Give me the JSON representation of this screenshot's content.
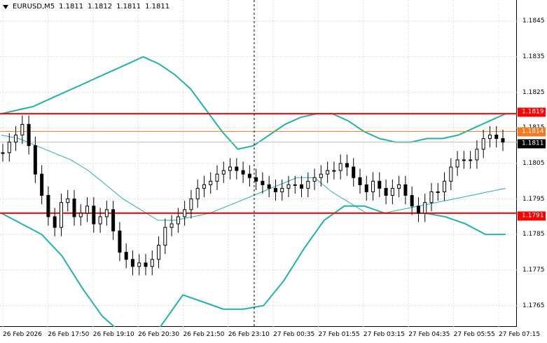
{
  "chart_header": {
    "symbol": "EURUSD,M5",
    "open": "1.1811",
    "high": "1.1812",
    "low": "1.1811",
    "close": "1.1811"
  },
  "colors": {
    "band": "#22b2aa",
    "resistance": "#ff0000",
    "current_price_tag": "#000000",
    "orange_level": "#f37a20",
    "candle": "#000000"
  },
  "levels": {
    "upper_red": "1.1819",
    "orange": "1.1814",
    "current": "1.1811",
    "lower_red": "1.1791"
  },
  "chart_data": {
    "type": "candlestick",
    "title": "",
    "ylim": [
      1.1759,
      1.1851
    ],
    "y_ticks": [
      "1.1845",
      "1.1835",
      "1.1825",
      "1.1815",
      "1.1805",
      "1.1795",
      "1.1785",
      "1.1775",
      "1.1765"
    ],
    "x_ticks": [
      "26 Feb 2026",
      "26 Feb 17:50",
      "26 Feb 19:10",
      "26 Feb 20:30",
      "26 Feb 21:50",
      "26 Feb 23:10",
      "27 Feb 00:35",
      "27 Feb 01:55",
      "27 Feb 03:15",
      "27 Feb 04:35",
      "27 Feb 05:55",
      "27 Feb 07:15"
    ],
    "horizontal_lines": [
      {
        "value": 1.1819,
        "color": "#ff0000"
      },
      {
        "value": 1.1814,
        "color": "#f37a20"
      },
      {
        "value": 1.1791,
        "color": "#ff0000"
      },
      {
        "value": 1.1811,
        "color": "#c0c0c0"
      }
    ],
    "vertical_marker_label": "26 Feb 23:10",
    "close_series": [
      1.1808,
      1.1811,
      1.1813,
      1.1816,
      1.181,
      1.1802,
      1.1796,
      1.179,
      1.1787,
      1.1794,
      1.1795,
      1.179,
      1.1791,
      1.1793,
      1.1788,
      1.179,
      1.1792,
      1.1786,
      1.178,
      1.1778,
      1.1776,
      1.1777,
      1.1776,
      1.1778,
      1.1782,
      1.1787,
      1.1788,
      1.179,
      1.1792,
      1.1795,
      1.1798,
      1.1799,
      1.18,
      1.1802,
      1.1803,
      1.1804,
      1.1803,
      1.1802,
      1.1801,
      1.18,
      1.1799,
      1.1798,
      1.1797,
      1.1798,
      1.1799,
      1.1799,
      1.1798,
      1.18,
      1.1801,
      1.1802,
      1.1803,
      1.1803,
      1.1805,
      1.1804,
      1.1801,
      1.1799,
      1.1797,
      1.18,
      1.1798,
      1.1796,
      1.1798,
      1.1799,
      1.1796,
      1.1793,
      1.1791,
      1.1794,
      1.1797,
      1.1797,
      1.18,
      1.1804,
      1.1806,
      1.1806,
      1.1806,
      1.1809,
      1.1812,
      1.1813,
      1.1812,
      1.1811
    ],
    "bollinger_upper": [
      1.1819,
      1.182,
      1.1821,
      1.1823,
      1.1825,
      1.1827,
      1.1829,
      1.1831,
      1.1833,
      1.1835,
      1.1833,
      1.183,
      1.1826,
      1.182,
      1.1814,
      1.1809,
      1.181,
      1.1813,
      1.1816,
      1.1818,
      1.1819,
      1.1819,
      1.1817,
      1.1814,
      1.1812,
      1.1811,
      1.1811,
      1.1812,
      1.1812,
      1.1813,
      1.1815,
      1.1817,
      1.1819
    ],
    "bollinger_middle": [
      1.1813,
      1.1812,
      1.181,
      1.1808,
      1.1806,
      1.1803,
      1.1799,
      1.1795,
      1.1792,
      1.1789,
      1.1789,
      1.179,
      1.1791,
      1.1793,
      1.1795,
      1.1797,
      1.1799,
      1.1801,
      1.1801,
      1.1797,
      1.1794,
      1.1791,
      1.1791,
      1.1792,
      1.1793,
      1.1794,
      1.1795,
      1.1796,
      1.1797,
      1.1798
    ],
    "bollinger_lower": [
      1.1791,
      1.1788,
      1.1785,
      1.1779,
      1.177,
      1.1762,
      1.1757,
      1.1752,
      1.176,
      1.1768,
      1.1766,
      1.1764,
      1.1764,
      1.1765,
      1.1772,
      1.1781,
      1.1789,
      1.1793,
      1.1793,
      1.1791,
      1.1791,
      1.1791,
      1.179,
      1.1788,
      1.1785,
      1.1785
    ]
  }
}
